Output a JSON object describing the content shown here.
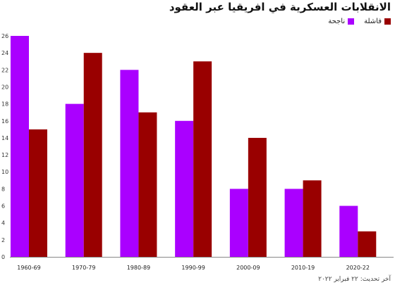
{
  "chart_data": {
    "type": "bar",
    "title": "الانقلابات العسكرية في افريقيا عبر العقود",
    "categories": [
      "1960-69",
      "1970-79",
      "1980-89",
      "1990-99",
      "2000-09",
      "2010-19",
      "2020-22"
    ],
    "series": [
      {
        "name": "ناجحة",
        "color": "#aa00ff",
        "values": [
          26,
          18,
          22,
          16,
          8,
          8,
          6
        ]
      },
      {
        "name": "فاشلة",
        "color": "#990000",
        "values": [
          15,
          24,
          17,
          23,
          14,
          9,
          3
        ]
      }
    ],
    "ylim": [
      0,
      26
    ],
    "yticks": [
      0,
      2,
      4,
      6,
      8,
      10,
      12,
      14,
      16,
      18,
      20,
      22,
      24,
      26
    ],
    "grid": false,
    "legend_position": "top-right",
    "footer": "آخر تحديث: ٢٢ فبراير ٢٠٢٢"
  }
}
